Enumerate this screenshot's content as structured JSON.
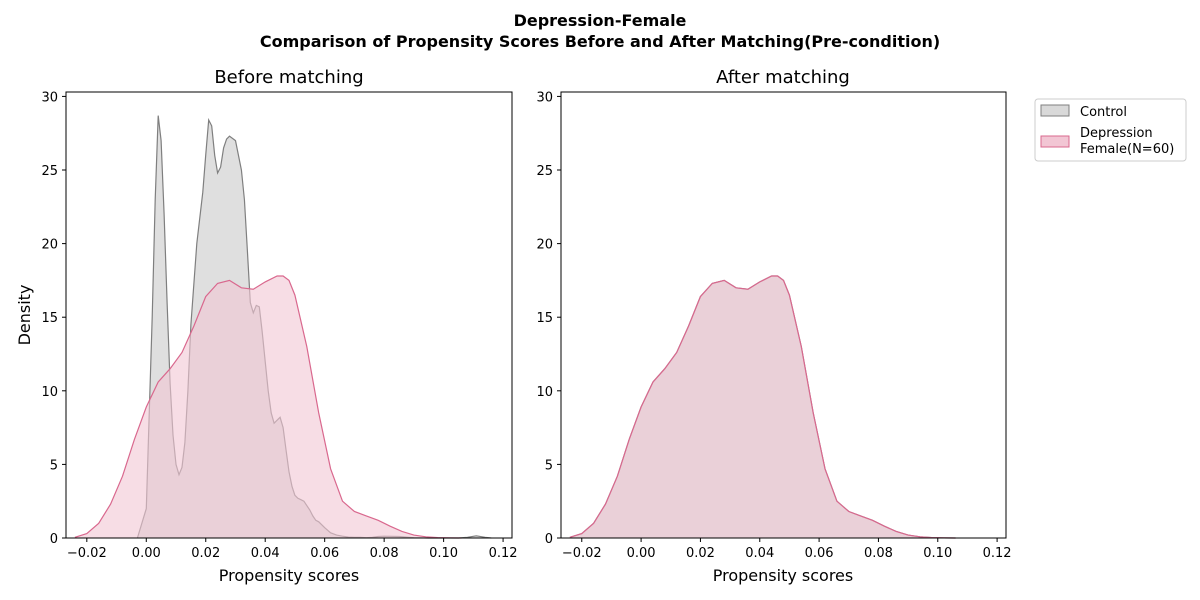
{
  "figure": {
    "title_line1": "Depression-Female",
    "title_line2": "Comparison of Propensity Scores Before and After Matching(Pre-condition)"
  },
  "colors": {
    "control_line": "#7f7f7f",
    "control_fill": "#d9d9d9",
    "depression_line": "#d9688e",
    "depression_fill": "#f2c6d4"
  },
  "legend": {
    "placement": "upper-right-outside",
    "control_label": "Control",
    "depression_label_line1": "Depression",
    "depression_label_line2": "Female(N=60)"
  },
  "chart_data": [
    {
      "type": "area",
      "title": "Before matching",
      "xlabel": "Propensity scores",
      "ylabel": "Density",
      "xlim": [
        -0.027,
        0.123
      ],
      "ylim": [
        0,
        30.3
      ],
      "xticks": [
        -0.02,
        0.0,
        0.02,
        0.04,
        0.06,
        0.08,
        0.1,
        0.12
      ],
      "xtick_labels": [
        "−0.02",
        "0.00",
        "0.02",
        "0.04",
        "0.06",
        "0.08",
        "0.10",
        "0.12"
      ],
      "yticks": [
        0,
        5,
        10,
        15,
        20,
        25,
        30
      ],
      "ytick_labels": [
        "0",
        "5",
        "10",
        "15",
        "20",
        "25",
        "30"
      ],
      "grid": false,
      "series": [
        {
          "name": "Control",
          "x": [
            -0.003,
            0.0,
            0.002,
            0.003,
            0.004,
            0.005,
            0.006,
            0.007,
            0.008,
            0.009,
            0.01,
            0.011,
            0.012,
            0.013,
            0.014,
            0.015,
            0.017,
            0.019,
            0.02,
            0.021,
            0.022,
            0.023,
            0.024,
            0.025,
            0.026,
            0.027,
            0.028,
            0.03,
            0.032,
            0.033,
            0.034,
            0.035,
            0.036,
            0.037,
            0.038,
            0.039,
            0.04,
            0.041,
            0.042,
            0.043,
            0.044,
            0.045,
            0.046,
            0.047,
            0.048,
            0.049,
            0.05,
            0.051,
            0.052,
            0.053,
            0.054,
            0.055,
            0.056,
            0.057,
            0.058,
            0.06,
            0.062,
            0.064,
            0.066,
            0.068,
            0.07,
            0.072,
            0.074,
            0.076,
            0.078,
            0.08,
            0.085,
            0.09,
            0.095,
            0.1,
            0.105,
            0.108,
            0.111,
            0.114,
            0.116
          ],
          "y": [
            0,
            2.0,
            15.0,
            23.0,
            28.7,
            27.0,
            22.0,
            16.0,
            10.5,
            7.0,
            5.0,
            4.3,
            4.8,
            6.5,
            10.0,
            14.5,
            20.0,
            23.5,
            26.0,
            28.4,
            28.0,
            26.0,
            24.8,
            25.2,
            26.5,
            27.1,
            27.3,
            27.0,
            25.0,
            23.0,
            19.5,
            16.0,
            15.3,
            15.8,
            15.7,
            14.0,
            12.0,
            10.0,
            8.5,
            7.8,
            8.0,
            8.2,
            7.5,
            6.0,
            4.5,
            3.5,
            2.9,
            2.7,
            2.6,
            2.5,
            2.2,
            1.9,
            1.5,
            1.2,
            1.1,
            0.7,
            0.35,
            0.2,
            0.12,
            0.06,
            0.05,
            0.05,
            0.02,
            0.05,
            0.1,
            0.12,
            0.1,
            0.02,
            0.0,
            0.0,
            0.0,
            0.05,
            0.15,
            0.05,
            0
          ]
        },
        {
          "name": "Depression Female(N=60)",
          "x": [
            -0.024,
            -0.02,
            -0.016,
            -0.012,
            -0.008,
            -0.004,
            0.0,
            0.004,
            0.008,
            0.012,
            0.016,
            0.02,
            0.024,
            0.028,
            0.032,
            0.036,
            0.04,
            0.044,
            0.046,
            0.048,
            0.05,
            0.054,
            0.058,
            0.062,
            0.066,
            0.07,
            0.074,
            0.078,
            0.082,
            0.086,
            0.09,
            0.094,
            0.098,
            0.102,
            0.106
          ],
          "y": [
            0.05,
            0.3,
            1.0,
            2.3,
            4.2,
            6.7,
            8.9,
            10.6,
            11.5,
            12.6,
            14.4,
            16.4,
            17.3,
            17.5,
            17.0,
            16.9,
            17.4,
            17.8,
            17.8,
            17.5,
            16.5,
            13.0,
            8.5,
            4.7,
            2.5,
            1.8,
            1.5,
            1.2,
            0.8,
            0.45,
            0.2,
            0.08,
            0.03,
            0.01,
            0
          ]
        }
      ]
    },
    {
      "type": "area",
      "title": "After matching",
      "xlabel": "Propensity scores",
      "ylabel": "",
      "xlim": [
        -0.027,
        0.123
      ],
      "ylim": [
        0,
        30.3
      ],
      "xticks": [
        -0.02,
        0.0,
        0.02,
        0.04,
        0.06,
        0.08,
        0.1,
        0.12
      ],
      "xtick_labels": [
        "−0.02",
        "0.00",
        "0.02",
        "0.04",
        "0.06",
        "0.08",
        "0.10",
        "0.12"
      ],
      "yticks": [
        0,
        5,
        10,
        15,
        20,
        25,
        30
      ],
      "ytick_labels": [
        "0",
        "5",
        "10",
        "15",
        "20",
        "25",
        "30"
      ],
      "grid": false,
      "series": [
        {
          "name": "Control",
          "x": [
            -0.024,
            -0.02,
            -0.016,
            -0.012,
            -0.008,
            -0.004,
            0.0,
            0.004,
            0.008,
            0.012,
            0.016,
            0.02,
            0.024,
            0.028,
            0.032,
            0.036,
            0.04,
            0.044,
            0.046,
            0.048,
            0.05,
            0.054,
            0.058,
            0.062,
            0.066,
            0.07,
            0.074,
            0.078,
            0.082,
            0.086,
            0.09,
            0.094,
            0.098,
            0.102,
            0.106
          ],
          "y": [
            0.05,
            0.3,
            1.0,
            2.3,
            4.2,
            6.7,
            8.9,
            10.6,
            11.5,
            12.6,
            14.4,
            16.4,
            17.3,
            17.5,
            17.0,
            16.9,
            17.4,
            17.8,
            17.8,
            17.5,
            16.5,
            13.0,
            8.5,
            4.7,
            2.5,
            1.8,
            1.5,
            1.2,
            0.8,
            0.45,
            0.2,
            0.08,
            0.03,
            0.01,
            0
          ]
        },
        {
          "name": "Depression Female(N=60)",
          "x": [
            -0.024,
            -0.02,
            -0.016,
            -0.012,
            -0.008,
            -0.004,
            0.0,
            0.004,
            0.008,
            0.012,
            0.016,
            0.02,
            0.024,
            0.028,
            0.032,
            0.036,
            0.04,
            0.044,
            0.046,
            0.048,
            0.05,
            0.054,
            0.058,
            0.062,
            0.066,
            0.07,
            0.074,
            0.078,
            0.082,
            0.086,
            0.09,
            0.094,
            0.098,
            0.102,
            0.106
          ],
          "y": [
            0.05,
            0.3,
            1.0,
            2.3,
            4.2,
            6.7,
            8.9,
            10.6,
            11.5,
            12.6,
            14.4,
            16.4,
            17.3,
            17.5,
            17.0,
            16.9,
            17.4,
            17.8,
            17.8,
            17.5,
            16.5,
            13.0,
            8.5,
            4.7,
            2.5,
            1.8,
            1.5,
            1.2,
            0.8,
            0.45,
            0.2,
            0.08,
            0.03,
            0.01,
            0
          ]
        }
      ]
    }
  ]
}
